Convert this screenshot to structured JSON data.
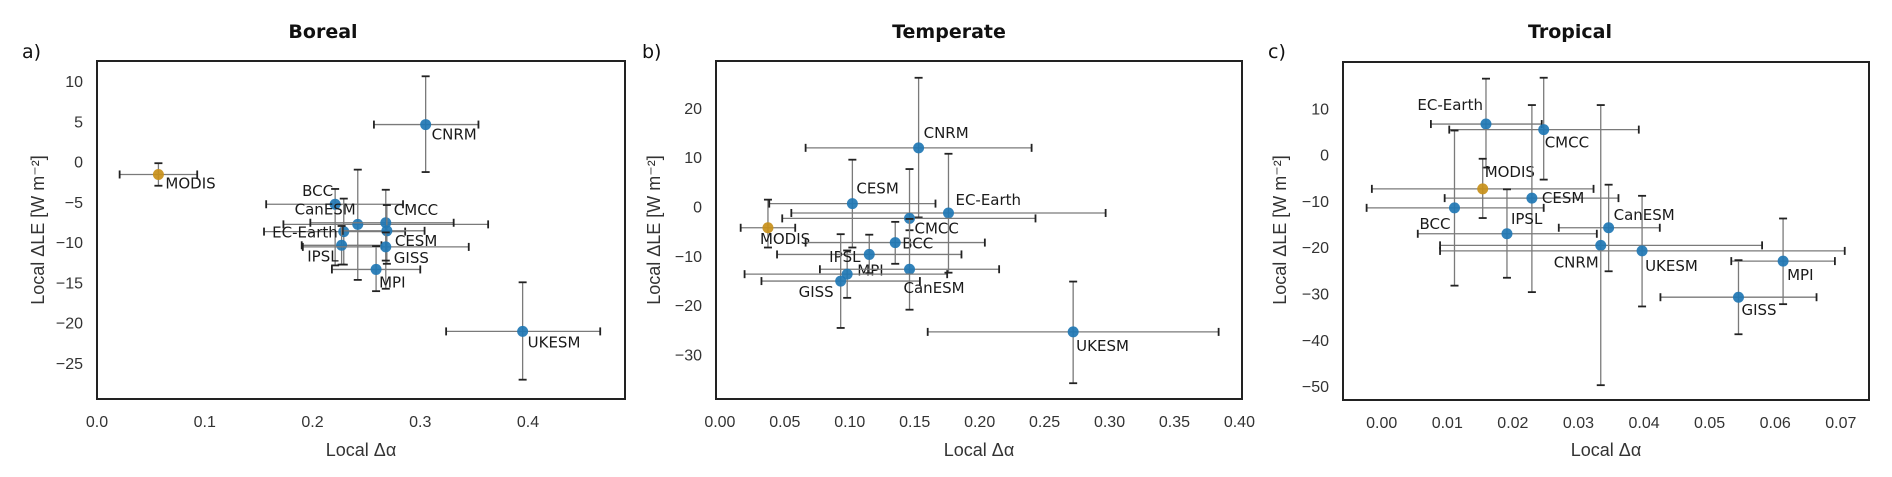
{
  "chart_data": [
    {
      "type": "scatter",
      "panel_label": "a)",
      "title": "Boreal",
      "xlabel": "Local Δα",
      "ylabel": "Local ΔLE [W m⁻²]",
      "xlim": [
        0.0,
        0.49
      ],
      "ylim": [
        -29.5,
        12.5
      ],
      "xticks": [
        0.0,
        0.1,
        0.2,
        0.3,
        0.4
      ],
      "xtick_labels": [
        "0.0",
        "0.1",
        "0.2",
        "0.3",
        "0.4"
      ],
      "yticks": [
        10,
        5,
        0,
        -5,
        -10,
        -15,
        -20,
        -25
      ],
      "ytick_labels": [
        "10",
        "5",
        "0",
        "−5",
        "−10",
        "−15",
        "−20",
        "−25"
      ],
      "grid": false,
      "points": [
        {
          "name": "MODIS",
          "x": 0.057,
          "y": -1.6,
          "xerr": [
            0.021,
            0.093
          ],
          "yerr": [
            -3.0,
            -0.2
          ],
          "kind": "observation"
        },
        {
          "name": "CNRM",
          "x": 0.305,
          "y": 4.6,
          "xerr": [
            0.257,
            0.354
          ],
          "yerr": [
            -1.3,
            10.6
          ],
          "kind": "model"
        },
        {
          "name": "BCC",
          "x": 0.221,
          "y": -5.3,
          "xerr": [
            0.157,
            0.284
          ],
          "yerr": [
            -12.9,
            -3.4
          ],
          "kind": "model"
        },
        {
          "name": "CanESM",
          "x": 0.242,
          "y": -7.8,
          "xerr": [
            0.173,
            0.363
          ],
          "yerr": [
            -14.7,
            -1.0
          ],
          "kind": "model"
        },
        {
          "name": "CMCC",
          "x": 0.268,
          "y": -7.6,
          "xerr": [
            0.198,
            0.331
          ],
          "yerr": [
            -15.8,
            -3.5
          ],
          "kind": "model"
        },
        {
          "name": "EC-Earth",
          "x": 0.229,
          "y": -8.7,
          "xerr": [
            0.155,
            0.286
          ],
          "yerr": [
            -12.8,
            -4.6
          ],
          "kind": "model"
        },
        {
          "name": "CESM",
          "x": 0.269,
          "y": -8.6,
          "xerr": [
            0.228,
            0.304
          ],
          "yerr": [
            -12.7,
            -5.4
          ],
          "kind": "model"
        },
        {
          "name": "IPSL",
          "x": 0.227,
          "y": -10.4,
          "xerr": [
            0.19,
            0.264
          ],
          "yerr": [
            -12.8,
            -8.0
          ],
          "kind": "model"
        },
        {
          "name": "GISS",
          "x": 0.268,
          "y": -10.6,
          "xerr": [
            0.191,
            0.345
          ],
          "yerr": [
            -12.3,
            -8.8
          ],
          "kind": "model"
        },
        {
          "name": "MPI",
          "x": 0.259,
          "y": -13.4,
          "xerr": [
            0.218,
            0.3
          ],
          "yerr": [
            -16.1,
            -10.5
          ],
          "kind": "model"
        },
        {
          "name": "UKESM",
          "x": 0.395,
          "y": -21.1,
          "xerr": [
            0.324,
            0.467
          ],
          "yerr": [
            -27.1,
            -15.0
          ],
          "kind": "model"
        }
      ]
    },
    {
      "type": "scatter",
      "panel_label": "b)",
      "title": "Temperate",
      "xlabel": "Local Δα",
      "ylabel": "Local ΔLE [W m⁻²]",
      "xlim": [
        -0.003,
        0.402
      ],
      "ylim": [
        -39,
        29.5
      ],
      "xticks": [
        0.0,
        0.05,
        0.1,
        0.15,
        0.2,
        0.25,
        0.3,
        0.35,
        0.4
      ],
      "xtick_labels": [
        "0.00",
        "0.05",
        "0.10",
        "0.15",
        "0.20",
        "0.25",
        "0.30",
        "0.35",
        "0.40"
      ],
      "yticks": [
        20,
        10,
        0,
        -10,
        -20,
        -30
      ],
      "ytick_labels": [
        "20",
        "10",
        "0",
        "−10",
        "−20",
        "−30"
      ],
      "grid": false,
      "points": [
        {
          "name": "MODIS",
          "x": 0.037,
          "y": -4.3,
          "xerr": [
            0.016,
            0.058
          ],
          "yerr": [
            -8.3,
            1.4
          ],
          "kind": "observation"
        },
        {
          "name": "CNRM",
          "x": 0.153,
          "y": 11.9,
          "xerr": [
            0.066,
            0.24
          ],
          "yerr": [
            -2.2,
            26.1
          ],
          "kind": "model"
        },
        {
          "name": "CESM",
          "x": 0.102,
          "y": 0.6,
          "xerr": [
            0.038,
            0.166
          ],
          "yerr": [
            -8.3,
            9.5
          ],
          "kind": "model"
        },
        {
          "name": "EC-Earth",
          "x": 0.176,
          "y": -1.3,
          "xerr": [
            0.055,
            0.297
          ],
          "yerr": [
            -13.4,
            10.7
          ],
          "kind": "model"
        },
        {
          "name": "CMCC",
          "x": 0.146,
          "y": -2.4,
          "xerr": [
            0.048,
            0.243
          ],
          "yerr": [
            -4.8,
            7.6
          ],
          "kind": "model"
        },
        {
          "name": "BCC",
          "x": 0.135,
          "y": -7.3,
          "xerr": [
            0.066,
            0.204
          ],
          "yerr": [
            -11.6,
            -3.1
          ],
          "kind": "model"
        },
        {
          "name": "MPI",
          "x": 0.115,
          "y": -9.7,
          "xerr": [
            0.044,
            0.186
          ],
          "yerr": [
            -13.5,
            -5.7
          ],
          "kind": "model"
        },
        {
          "name": "CanESM",
          "x": 0.146,
          "y": -12.7,
          "xerr": [
            0.077,
            0.215
          ],
          "yerr": [
            -20.9,
            -2.5
          ],
          "kind": "model"
        },
        {
          "name": "IPSL",
          "x": 0.098,
          "y": -13.7,
          "xerr": [
            0.019,
            0.175
          ],
          "yerr": [
            -18.5,
            -8.9
          ],
          "kind": "model"
        },
        {
          "name": "GISS",
          "x": 0.093,
          "y": -15.1,
          "xerr": [
            0.032,
            0.154
          ],
          "yerr": [
            -24.6,
            -5.6
          ],
          "kind": "model"
        },
        {
          "name": "UKESM",
          "x": 0.272,
          "y": -25.4,
          "xerr": [
            0.16,
            0.384
          ],
          "yerr": [
            -35.8,
            -15.2
          ],
          "kind": "model"
        }
      ]
    },
    {
      "type": "scatter",
      "panel_label": "c)",
      "title": "Tropical",
      "xlabel": "Local Δα",
      "ylabel": "Local ΔLE [W m⁻²]",
      "xlim": [
        -0.0059,
        0.0743
      ],
      "ylim": [
        -53,
        20
      ],
      "xticks": [
        0.0,
        0.01,
        0.02,
        0.03,
        0.04,
        0.05,
        0.06,
        0.07
      ],
      "xtick_labels": [
        "0.00",
        "0.01",
        "0.02",
        "0.03",
        "0.04",
        "0.05",
        "0.06",
        "0.07"
      ],
      "yticks": [
        10,
        0,
        -10,
        -20,
        -30,
        -40,
        -50
      ],
      "ytick_labels": [
        "10",
        "0",
        "−10",
        "−20",
        "−30",
        "−40",
        "−50"
      ],
      "grid": false,
      "points": [
        {
          "name": "EC-Earth",
          "x": 0.0159,
          "y": 6.6,
          "xerr": [
            0.0075,
            0.0244
          ],
          "yerr": [
            -2.8,
            16.4
          ],
          "kind": "model"
        },
        {
          "name": "CMCC",
          "x": 0.0247,
          "y": 5.4,
          "xerr": [
            0.0103,
            0.0392
          ],
          "yerr": [
            -5.4,
            16.6
          ],
          "kind": "model"
        },
        {
          "name": "MODIS",
          "x": 0.0154,
          "y": -7.4,
          "xerr": [
            -0.0015,
            0.0323
          ],
          "yerr": [
            -13.7,
            -0.9
          ],
          "kind": "observation"
        },
        {
          "name": "CESM",
          "x": 0.0229,
          "y": -9.4,
          "xerr": [
            0.0096,
            0.0361
          ],
          "yerr": [
            -29.7,
            10.7
          ],
          "kind": "model"
        },
        {
          "name": "BCC",
          "x": 0.0111,
          "y": -11.5,
          "xerr": [
            -0.0023,
            0.0247
          ],
          "yerr": [
            -28.3,
            5.2
          ],
          "kind": "model"
        },
        {
          "name": "IPSL",
          "x": 0.0191,
          "y": -17.1,
          "xerr": [
            0.0055,
            0.0328
          ],
          "yerr": [
            -26.6,
            -7.5
          ],
          "kind": "model"
        },
        {
          "name": "CanESM",
          "x": 0.0346,
          "y": -15.8,
          "xerr": [
            0.027,
            0.0424
          ],
          "yerr": [
            -25.2,
            -6.5
          ],
          "kind": "model"
        },
        {
          "name": "CNRM",
          "x": 0.0334,
          "y": -19.6,
          "xerr": [
            0.0089,
            0.058
          ],
          "yerr": [
            -49.8,
            10.7
          ],
          "kind": "model"
        },
        {
          "name": "UKESM",
          "x": 0.0397,
          "y": -20.8,
          "xerr": [
            0.0089,
            0.0706
          ],
          "yerr": [
            -32.8,
            -8.9
          ],
          "kind": "model"
        },
        {
          "name": "MPI",
          "x": 0.0612,
          "y": -23.0,
          "xerr": [
            0.0533,
            0.0691
          ],
          "yerr": [
            -32.3,
            -13.8
          ],
          "kind": "model"
        },
        {
          "name": "GISS",
          "x": 0.0544,
          "y": -30.8,
          "xerr": [
            0.0425,
            0.0663
          ],
          "yerr": [
            -38.8,
            -22.8
          ],
          "kind": "model"
        }
      ]
    }
  ],
  "colors": {
    "model": "#1f77b4",
    "observation": "#c8901a",
    "errorbar": "#7a7a7a",
    "caps": "#222222"
  }
}
